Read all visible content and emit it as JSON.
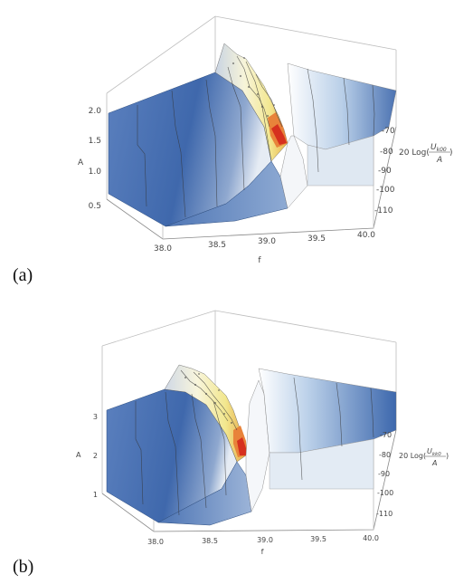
{
  "panels": [
    {
      "label": "(a)",
      "zlabel_prefix": "20 Log(",
      "zlabel_num": "U",
      "zlabel_sub": "k00",
      "zlabel_den": "A",
      "zlabel_suffix": ")"
    },
    {
      "label": "(b)",
      "zlabel_prefix": "20 Log(",
      "zlabel_num": "U",
      "zlabel_sub": "kk0",
      "zlabel_den": "A",
      "zlabel_suffix": ")"
    }
  ],
  "chart_data": [
    {
      "type": "surface",
      "title": "",
      "xlabel": "f",
      "ylabel": "A",
      "x_ticks": [
        "38.0",
        "38.5",
        "39.0",
        "39.5",
        "40.0"
      ],
      "y_ticks": [
        "0.5",
        "1.0",
        "1.5",
        "2.0"
      ],
      "z_ticks": [
        "-70",
        "-80",
        "-90",
        "-100",
        "-110"
      ],
      "xlim": [
        38.0,
        40.0
      ],
      "ylim": [
        0.3,
        2.2
      ],
      "zlim": [
        -110,
        -65
      ],
      "resonance_f": 39.2,
      "colors": {
        "low": "#3d68ad",
        "mid": "#e8eef5",
        "high": "#f6f0c0",
        "peak": "#d6301e"
      }
    },
    {
      "type": "surface",
      "title": "",
      "xlabel": "f",
      "ylabel": "A",
      "x_ticks": [
        "38.0",
        "38.5",
        "39.0",
        "39.5",
        "40.0"
      ],
      "y_ticks": [
        "1",
        "2",
        "3"
      ],
      "z_ticks": [
        "-70",
        "-80",
        "-90",
        "-100",
        "-110"
      ],
      "xlim": [
        38.0,
        40.0
      ],
      "ylim": [
        0.5,
        3.5
      ],
      "zlim": [
        -110,
        -65
      ],
      "resonance_f": 39.0,
      "colors": {
        "low": "#3d68ad",
        "mid": "#e8eef5",
        "high": "#f6f0c0",
        "peak": "#d6301e"
      }
    }
  ]
}
